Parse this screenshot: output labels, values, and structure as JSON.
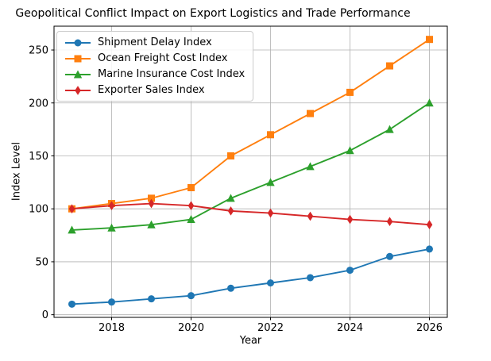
{
  "title": "Geopolitical Conflict Impact on Export Logistics and Trade Performance",
  "chart_data": {
    "type": "line",
    "title": "Geopolitical Conflict Impact on Export Logistics and Trade Performance",
    "xlabel": "Year",
    "ylabel": "Index Level",
    "x": [
      2017,
      2018,
      2019,
      2020,
      2021,
      2022,
      2023,
      2024,
      2025,
      2026
    ],
    "series": [
      {
        "name": "Shipment Delay Index",
        "color": "#1f77b4",
        "marker": "circle",
        "values": [
          10,
          12,
          15,
          18,
          25,
          30,
          35,
          42,
          55,
          62
        ]
      },
      {
        "name": "Ocean Freight Cost Index",
        "color": "#ff7f0e",
        "marker": "square",
        "values": [
          100,
          105,
          110,
          120,
          150,
          170,
          190,
          210,
          235,
          260
        ]
      },
      {
        "name": "Marine Insurance Cost Index",
        "color": "#2ca02c",
        "marker": "triangle",
        "values": [
          80,
          82,
          85,
          90,
          110,
          125,
          140,
          155,
          175,
          200
        ]
      },
      {
        "name": "Exporter Sales Index",
        "color": "#d62728",
        "marker": "diamond",
        "values": [
          100,
          103,
          105,
          103,
          98,
          96,
          93,
          90,
          88,
          85
        ]
      }
    ],
    "x_ticks": [
      2018,
      2020,
      2022,
      2024,
      2026
    ],
    "y_ticks": [
      0,
      50,
      100,
      150,
      200,
      250
    ],
    "xlim": [
      2016.55,
      2026.45
    ],
    "ylim": [
      -2.5,
      272.5
    ],
    "grid": true,
    "grid_color": "#b0b0b0",
    "legend_position": "upper-left"
  }
}
